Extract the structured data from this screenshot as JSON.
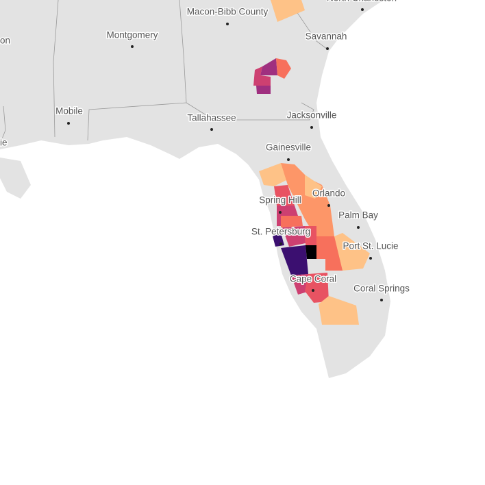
{
  "map": {
    "places": [
      {
        "name": "North Charleston"
      },
      {
        "name": "Macon-Bibb County"
      },
      {
        "name": "on"
      },
      {
        "name": "Montgomery"
      },
      {
        "name": "Savannah"
      },
      {
        "name": "Mobile"
      },
      {
        "name": "Tallahassee"
      },
      {
        "name": "Jacksonville"
      },
      {
        "name": "ie"
      },
      {
        "name": "Gainesville"
      },
      {
        "name": "Spring Hill"
      },
      {
        "name": "Orlando"
      },
      {
        "name": "Palm Bay"
      },
      {
        "name": "St. Petersburg"
      },
      {
        "name": "Port St. Lucie"
      },
      {
        "name": "Cape Coral"
      },
      {
        "name": "Coral Springs"
      }
    ]
  }
}
